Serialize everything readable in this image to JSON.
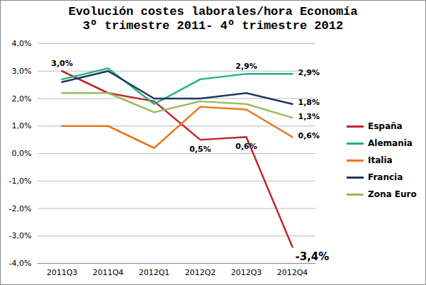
{
  "chart_data": {
    "type": "line",
    "title": "Evolución costes laborales/hora Economía",
    "subtitle": "3º trimestre 2011- 4º trimestre 2012",
    "categories": [
      "2011Q3",
      "2011Q4",
      "2012Q1",
      "2012Q2",
      "2012Q3",
      "2012Q4"
    ],
    "series": [
      {
        "name": "España",
        "color": "#c0262d",
        "values": [
          3.0,
          2.2,
          1.9,
          0.5,
          0.6,
          -3.4
        ],
        "value_labels": [
          "3,0%",
          null,
          null,
          "0,5%",
          "0,6%",
          "-3,4%"
        ]
      },
      {
        "name": "Alemania",
        "color": "#22b27a",
        "values": [
          2.7,
          3.1,
          1.8,
          2.7,
          2.9,
          2.9
        ],
        "value_labels": [
          null,
          null,
          null,
          null,
          "2,9%",
          "2,9%"
        ]
      },
      {
        "name": "Italia",
        "color": "#e8761c",
        "values": [
          1.0,
          1.0,
          0.2,
          1.7,
          1.6,
          0.6
        ],
        "value_labels": [
          null,
          null,
          null,
          null,
          null,
          "0,6%"
        ]
      },
      {
        "name": "Francia",
        "color": "#1f3864",
        "values": [
          2.6,
          3.0,
          2.0,
          2.0,
          2.2,
          1.8
        ],
        "value_labels": [
          null,
          null,
          null,
          null,
          null,
          "1,8%"
        ]
      },
      {
        "name": "Zona Euro",
        "color": "#9bbb59",
        "values": [
          2.2,
          2.2,
          1.5,
          1.9,
          1.8,
          1.3
        ],
        "value_labels": [
          null,
          null,
          null,
          null,
          null,
          "1,3%"
        ]
      }
    ],
    "ylim": [
      -4,
      4
    ],
    "yticks": [
      {
        "value": -4,
        "label": "-4,0%"
      },
      {
        "value": -3,
        "label": "-3,0%"
      },
      {
        "value": -2,
        "label": "-2,0%"
      },
      {
        "value": -1,
        "label": "-1,0%"
      },
      {
        "value": 0,
        "label": "0,0%"
      },
      {
        "value": 1,
        "label": "1,0%"
      },
      {
        "value": 2,
        "label": "2,0%"
      },
      {
        "value": 3,
        "label": "3,0%"
      },
      {
        "value": 4,
        "label": "4,0%"
      }
    ],
    "grid": true,
    "legend": "right",
    "data_labels": true
  }
}
